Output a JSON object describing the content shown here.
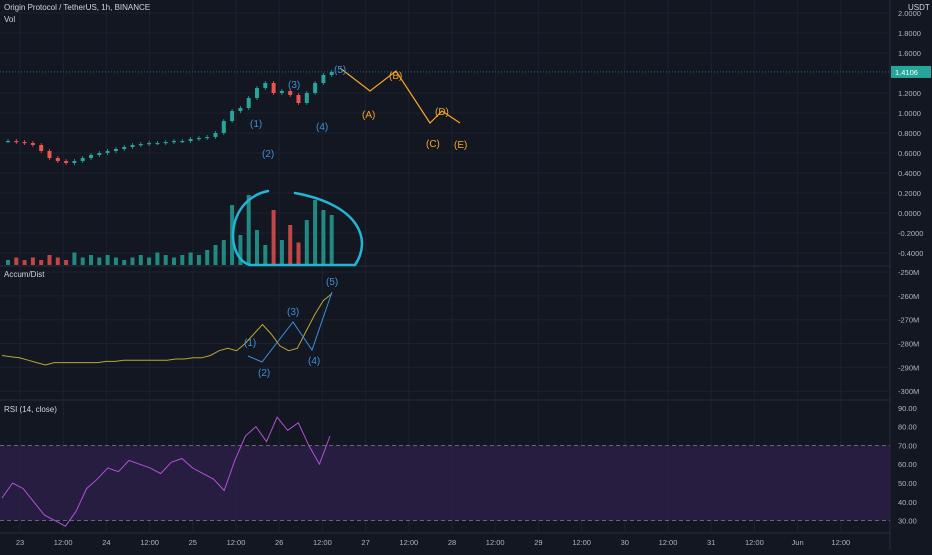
{
  "header": {
    "title": "Origin Protocol / TetherUS, 1h, BINANCE",
    "vol_label": "Vol",
    "currency": "USDT"
  },
  "price_pane": {
    "axis_ticks": [
      "2.0000",
      "1.8000",
      "1.6000",
      "1.2000",
      "1.0000",
      "0.8000",
      "0.6000",
      "0.4000",
      "0.2000",
      "0.0000",
      "-0.2000",
      "-0.4000"
    ],
    "last_price": "1.4106",
    "wave_labels_impulse": [
      "(1)",
      "(2)",
      "(3)",
      "(4)",
      "(5)"
    ],
    "wave_labels_corrective": [
      "(A)",
      "(B)",
      "(C)",
      "(D)",
      "(E)"
    ]
  },
  "ad_pane": {
    "title": "Accum/Dist",
    "axis_ticks": [
      "-250M",
      "-260M",
      "-270M",
      "-280M",
      "-290M",
      "-300M"
    ],
    "wave_labels": [
      "(1)",
      "(2)",
      "(3)",
      "(4)",
      "(5)"
    ]
  },
  "rsi_pane": {
    "title": "RSI (14, close)",
    "axis_ticks": [
      "90.00",
      "80.00",
      "70.00",
      "60.00",
      "50.00",
      "40.00",
      "30.00"
    ]
  },
  "time_axis": {
    "labels": [
      "23",
      "12:00",
      "24",
      "12:00",
      "25",
      "12:00",
      "26",
      "12:00",
      "27",
      "12:00",
      "28",
      "12:00",
      "29",
      "12:00",
      "30",
      "12:00",
      "31",
      "12:00",
      "Jun",
      "12:00"
    ]
  },
  "colors": {
    "background": "#131722",
    "up": "#26a69a",
    "down": "#ef5350",
    "wave_blue": "#3f8fd6",
    "wave_orange": "#f5a623",
    "highlight_circle": "#22b5d6",
    "ad_line": "#b7a732",
    "rsi_line": "#b44fd6",
    "rsi_band": "#2a1e45"
  },
  "chart_data": [
    {
      "type": "line",
      "panel": "price",
      "title": "Origin Protocol / TetherUS, 1h, BINANCE",
      "ylim": [
        -0.45,
        2.05
      ],
      "last": 1.4106,
      "series": [
        {
          "values": [
            0.72,
            0.71,
            0.7,
            0.68,
            0.62,
            0.55,
            0.52,
            0.5,
            0.52,
            0.55,
            0.58,
            0.6,
            0.62,
            0.64,
            0.66,
            0.68,
            0.69,
            0.7,
            0.7,
            0.71,
            0.72,
            0.72,
            0.74,
            0.75,
            0.76,
            0.8,
            0.92,
            1.02,
            1.05,
            1.15,
            1.25,
            1.3,
            1.2,
            1.22,
            1.18,
            1.1,
            1.2,
            1.3,
            1.38,
            1.41
          ]
        },
        {
          "values": [
            1.45,
            1.22,
            1.42,
            0.9,
            1.02,
            0.9
          ]
        }
      ]
    },
    {
      "type": "bar",
      "panel": "volume",
      "values": [
        2,
        3,
        2,
        3,
        2,
        4,
        3,
        2,
        5,
        3,
        4,
        3,
        4,
        3,
        2,
        3,
        4,
        3,
        5,
        4,
        3,
        4,
        5,
        4,
        6,
        8,
        10,
        24,
        12,
        28,
        14,
        8,
        22,
        10,
        16,
        9,
        18,
        26,
        22,
        20
      ]
    },
    {
      "type": "line",
      "panel": "accum_dist",
      "title": "Accum/Dist",
      "ylim": [
        -302,
        -250
      ],
      "values": [
        -285,
        -285.5,
        -286,
        -287,
        -288,
        -289,
        -288,
        -288,
        -288,
        -288,
        -288,
        -288,
        -287.5,
        -287.5,
        -287,
        -287,
        -287,
        -287,
        -287,
        -287,
        -286.5,
        -286.5,
        -286,
        -286,
        -285,
        -283,
        -282,
        -283,
        -280,
        -276,
        -272,
        -276,
        -281,
        -283,
        -282,
        -275,
        -268,
        -262,
        -259
      ]
    },
    {
      "type": "line",
      "panel": "rsi",
      "title": "RSI (14, close)",
      "ylim": [
        25,
        92
      ],
      "guides": [
        70,
        30
      ],
      "values": [
        42,
        50,
        47,
        40,
        33,
        30,
        27,
        35,
        47,
        52,
        58,
        56,
        62,
        60,
        58,
        55,
        61,
        63,
        58,
        55,
        52,
        46,
        62,
        75,
        80,
        72,
        85,
        78,
        82,
        70,
        60,
        75
      ]
    }
  ]
}
